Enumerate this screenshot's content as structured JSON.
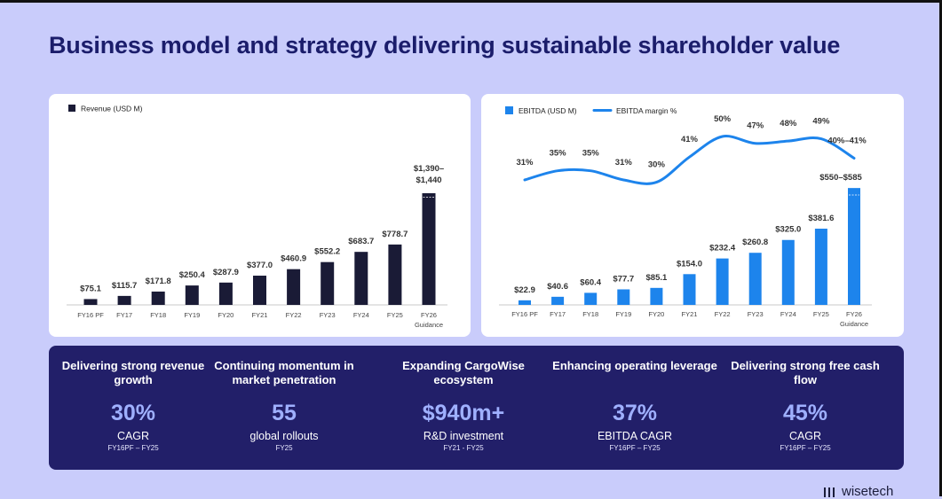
{
  "title": "Business model and strategy delivering sustainable shareholder value",
  "colors": {
    "dark_navy": "#1a1b36",
    "accent_blue": "#1d84ec",
    "kpi_value": "#9fb0ff",
    "title": "#1b1d6b"
  },
  "chart_data": [
    {
      "type": "bar",
      "legend": "Revenue (USD M)",
      "categories": [
        "FY16 PF",
        "FY17",
        "FY18",
        "FY19",
        "FY20",
        "FY21",
        "FY22",
        "FY23",
        "FY24",
        "FY25",
        "FY26"
      ],
      "sub_labels": [
        "",
        "",
        "",
        "",
        "",
        "",
        "",
        "",
        "",
        "",
        "Guidance"
      ],
      "values": [
        75.1,
        115.7,
        171.8,
        250.4,
        287.9,
        377.0,
        460.9,
        552.2,
        683.7,
        778.7,
        1440
      ],
      "guidance_low": 1390,
      "labels": [
        "$75.1",
        "$115.7",
        "$171.8",
        "$250.4",
        "$287.9",
        "$377.0",
        "$460.9",
        "$552.2",
        "$683.7",
        "$778.7",
        "$1,390–\n$1,440"
      ],
      "color": "#1a1b36"
    },
    {
      "type": "bar+line",
      "legend_bar": "EBITDA (USD M)",
      "legend_line": "EBITDA margin %",
      "categories": [
        "FY16 PF",
        "FY17",
        "FY18",
        "FY19",
        "FY20",
        "FY21",
        "FY22",
        "FY23",
        "FY24",
        "FY25",
        "FY26"
      ],
      "sub_labels": [
        "",
        "",
        "",
        "",
        "",
        "",
        "",
        "",
        "",
        "",
        "Guidance"
      ],
      "values": [
        22.9,
        40.6,
        60.4,
        77.7,
        85.1,
        154.0,
        232.4,
        260.8,
        325.0,
        381.6,
        585
      ],
      "guidance_low": 550,
      "labels": [
        "$22.9",
        "$40.6",
        "$60.4",
        "$77.7",
        "$85.1",
        "$154.0",
        "$232.4",
        "$260.8",
        "$325.0",
        "$381.6",
        "$550–$585"
      ],
      "margin_values": [
        31,
        35,
        35,
        31,
        30,
        41,
        50,
        47,
        48,
        49,
        40.5
      ],
      "margin_labels": [
        "31%",
        "35%",
        "35%",
        "31%",
        "30%",
        "41%",
        "50%",
        "47%",
        "48%",
        "49%",
        "40%–41%"
      ],
      "color": "#1d84ec"
    }
  ],
  "kpis": [
    {
      "heading": "Delivering strong revenue growth",
      "value": "30%",
      "label": "CAGR",
      "sub": "FY16PF – FY25"
    },
    {
      "heading": "Continuing momentum in market penetration",
      "value": "55",
      "label": "global rollouts",
      "sub": "FY25"
    },
    {
      "heading": "Expanding CargoWise ecosystem",
      "value": "$940m+",
      "label": "R&D investment",
      "sub": "FY21 - FY25"
    },
    {
      "heading": "Enhancing operating leverage",
      "value": "37%",
      "label": "EBITDA CAGR",
      "sub": "FY16PF – FY25"
    },
    {
      "heading": "Delivering strong free cash flow",
      "value": "45%",
      "label": "CAGR",
      "sub": "FY16PF – FY25"
    }
  ],
  "logo": {
    "text": "wisetech"
  }
}
